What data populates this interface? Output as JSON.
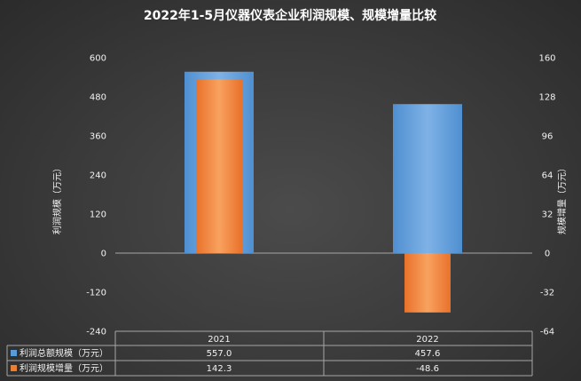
{
  "chart_data": {
    "type": "bar",
    "title": "2022年1-5月仪器仪表企业利润规模、规模增量比较",
    "categories": [
      "2021",
      "2022"
    ],
    "series": [
      {
        "name": "利润总额规模（万元）",
        "values": [
          557.0,
          457.6
        ],
        "value_labels": [
          "557.0",
          "457.6"
        ],
        "axis": "left",
        "color": "#5b9bd5"
      },
      {
        "name": "利润规模增量（万元）",
        "values": [
          142.3,
          -48.6
        ],
        "value_labels": [
          "142.3",
          "-48.6"
        ],
        "axis": "right",
        "color": "#ed7d31"
      }
    ],
    "ylabel": "利润规模（万元）",
    "y2label": "规模增量（万元）",
    "ylim": [
      -240,
      600
    ],
    "y2lim": [
      -64,
      160
    ],
    "yticks": [
      "600",
      "480",
      "360",
      "240",
      "120",
      "0",
      "-120",
      "-240"
    ],
    "y2ticks": [
      "160",
      "128",
      "96",
      "64",
      "32",
      "0",
      "-32",
      "-64"
    ],
    "legend": "data-table",
    "grid": false
  }
}
